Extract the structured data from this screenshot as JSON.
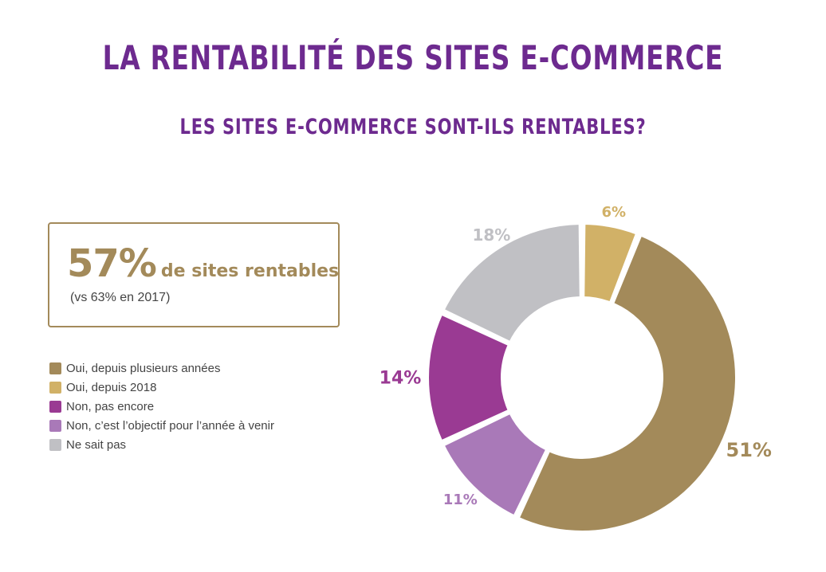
{
  "title": "LA RENTABILITÉ DES SITES E-COMMERCE",
  "subtitle": "LES SITES E-COMMERCE SONT-ILS RENTABLES?",
  "highlight": {
    "value": "57%",
    "text": "de sites rentables",
    "note": "(vs 63% en 2017)",
    "color": "#a38a5a"
  },
  "chart_data": {
    "type": "pie",
    "variant": "donut",
    "legend_position": "left",
    "slices": [
      {
        "label": "Oui, depuis 2018",
        "value": 6,
        "display": "6%",
        "color": "#d1b167"
      },
      {
        "label": "Oui, depuis plusieurs années",
        "value": 51,
        "display": "51%",
        "color": "#a38a5a"
      },
      {
        "label": "Non, c'est l'objectif pour l'année à venir",
        "value": 11,
        "display": "11%",
        "color": "#a979b8"
      },
      {
        "label": "Non, pas encore",
        "value": 14,
        "display": "14%",
        "color": "#9a3a93"
      },
      {
        "label": "Ne sait pas",
        "value": 18,
        "display": "18%",
        "color": "#c0c0c4"
      }
    ],
    "legend": [
      {
        "label": "Oui, depuis plusieurs années",
        "color": "#a38a5a"
      },
      {
        "label": "Oui, depuis 2018",
        "color": "#d1b167"
      },
      {
        "label": "Non, pas encore",
        "color": "#9a3a93"
      },
      {
        "label": "Non, c’est l’objectif pour l’année à venir",
        "color": "#a979b8"
      },
      {
        "label": "Ne sait pas",
        "color": "#c0c0c4"
      }
    ]
  }
}
